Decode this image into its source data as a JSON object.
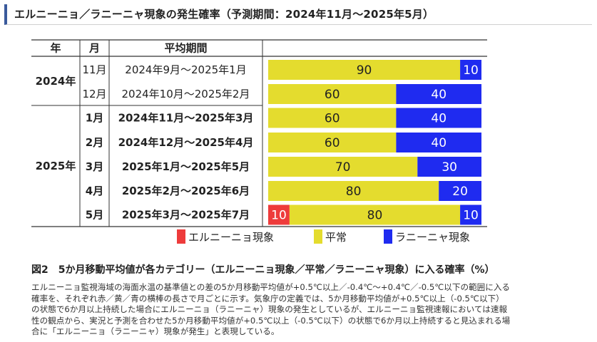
{
  "page_title": "エルニーニョ／ラニーニャ現象の発生確率（予測期間：2024年11月～2025年5月）",
  "chart_data": {
    "type": "bar",
    "stacked": true,
    "orientation": "horizontal",
    "columns": {
      "year": "年",
      "month": "月",
      "period": "平均期間"
    },
    "rows": [
      {
        "year": "2024年",
        "month": "11月",
        "period": "2024年9月～2025年1月",
        "bold": false,
        "values": [
          0,
          90,
          10
        ]
      },
      {
        "year": "",
        "month": "12月",
        "period": "2024年10月～2025年2月",
        "bold": false,
        "values": [
          0,
          60,
          40
        ]
      },
      {
        "year": "2025年",
        "month": "1月",
        "period": "2024年11月～2025年3月",
        "bold": true,
        "values": [
          0,
          60,
          40
        ]
      },
      {
        "year": "",
        "month": "2月",
        "period": "2024年12月～2025年4月",
        "bold": true,
        "values": [
          0,
          60,
          40
        ]
      },
      {
        "year": "",
        "month": "3月",
        "period": "2025年1月～2025年5月",
        "bold": true,
        "values": [
          0,
          70,
          30
        ]
      },
      {
        "year": "",
        "month": "4月",
        "period": "2025年2月～2025年6月",
        "bold": true,
        "values": [
          0,
          80,
          20
        ]
      },
      {
        "year": "",
        "month": "5月",
        "period": "2025年3月～2025年7月",
        "bold": true,
        "values": [
          10,
          80,
          10
        ]
      }
    ],
    "series": [
      {
        "name": "エルニーニョ現象",
        "color": "#ee3b3b"
      },
      {
        "name": "平常",
        "color": "#e4dc2e"
      },
      {
        "name": "ラニーニャ現象",
        "color": "#1f2bf0"
      }
    ],
    "xlim": [
      0,
      100
    ]
  },
  "caption": "図2　5か月移動平均値が各カテゴリー（エルニーニョ現象／平常／ラニーニャ現象）に入る確率（%）",
  "note_lines": [
    "エルニーニョ監視海域の海面水温の基準値との差の5か月移動平均値が+0.5℃以上／-0.4℃～+0.4℃／-0.5℃以下の範囲に入る",
    "確率を、それぞれ赤／黄／青の横棒の長さで月ごとに示す。気象庁の定義では、5か月移動平均値が+0.5℃以上（-0.5℃以下）",
    "の状態で6か月以上持続した場合にエルニーニョ（ラニーニャ）現象の発生としているが、エルニーニョ監視速報においては速報",
    "性の観点から、実況と予測を合わせた5か月移動平均値が+0.5℃以上（-0.5℃以下）の状態で6か月以上持続すると見込まれる場",
    "合に「エルニーニョ（ラニーニャ）現象が発生」と表現している。"
  ]
}
